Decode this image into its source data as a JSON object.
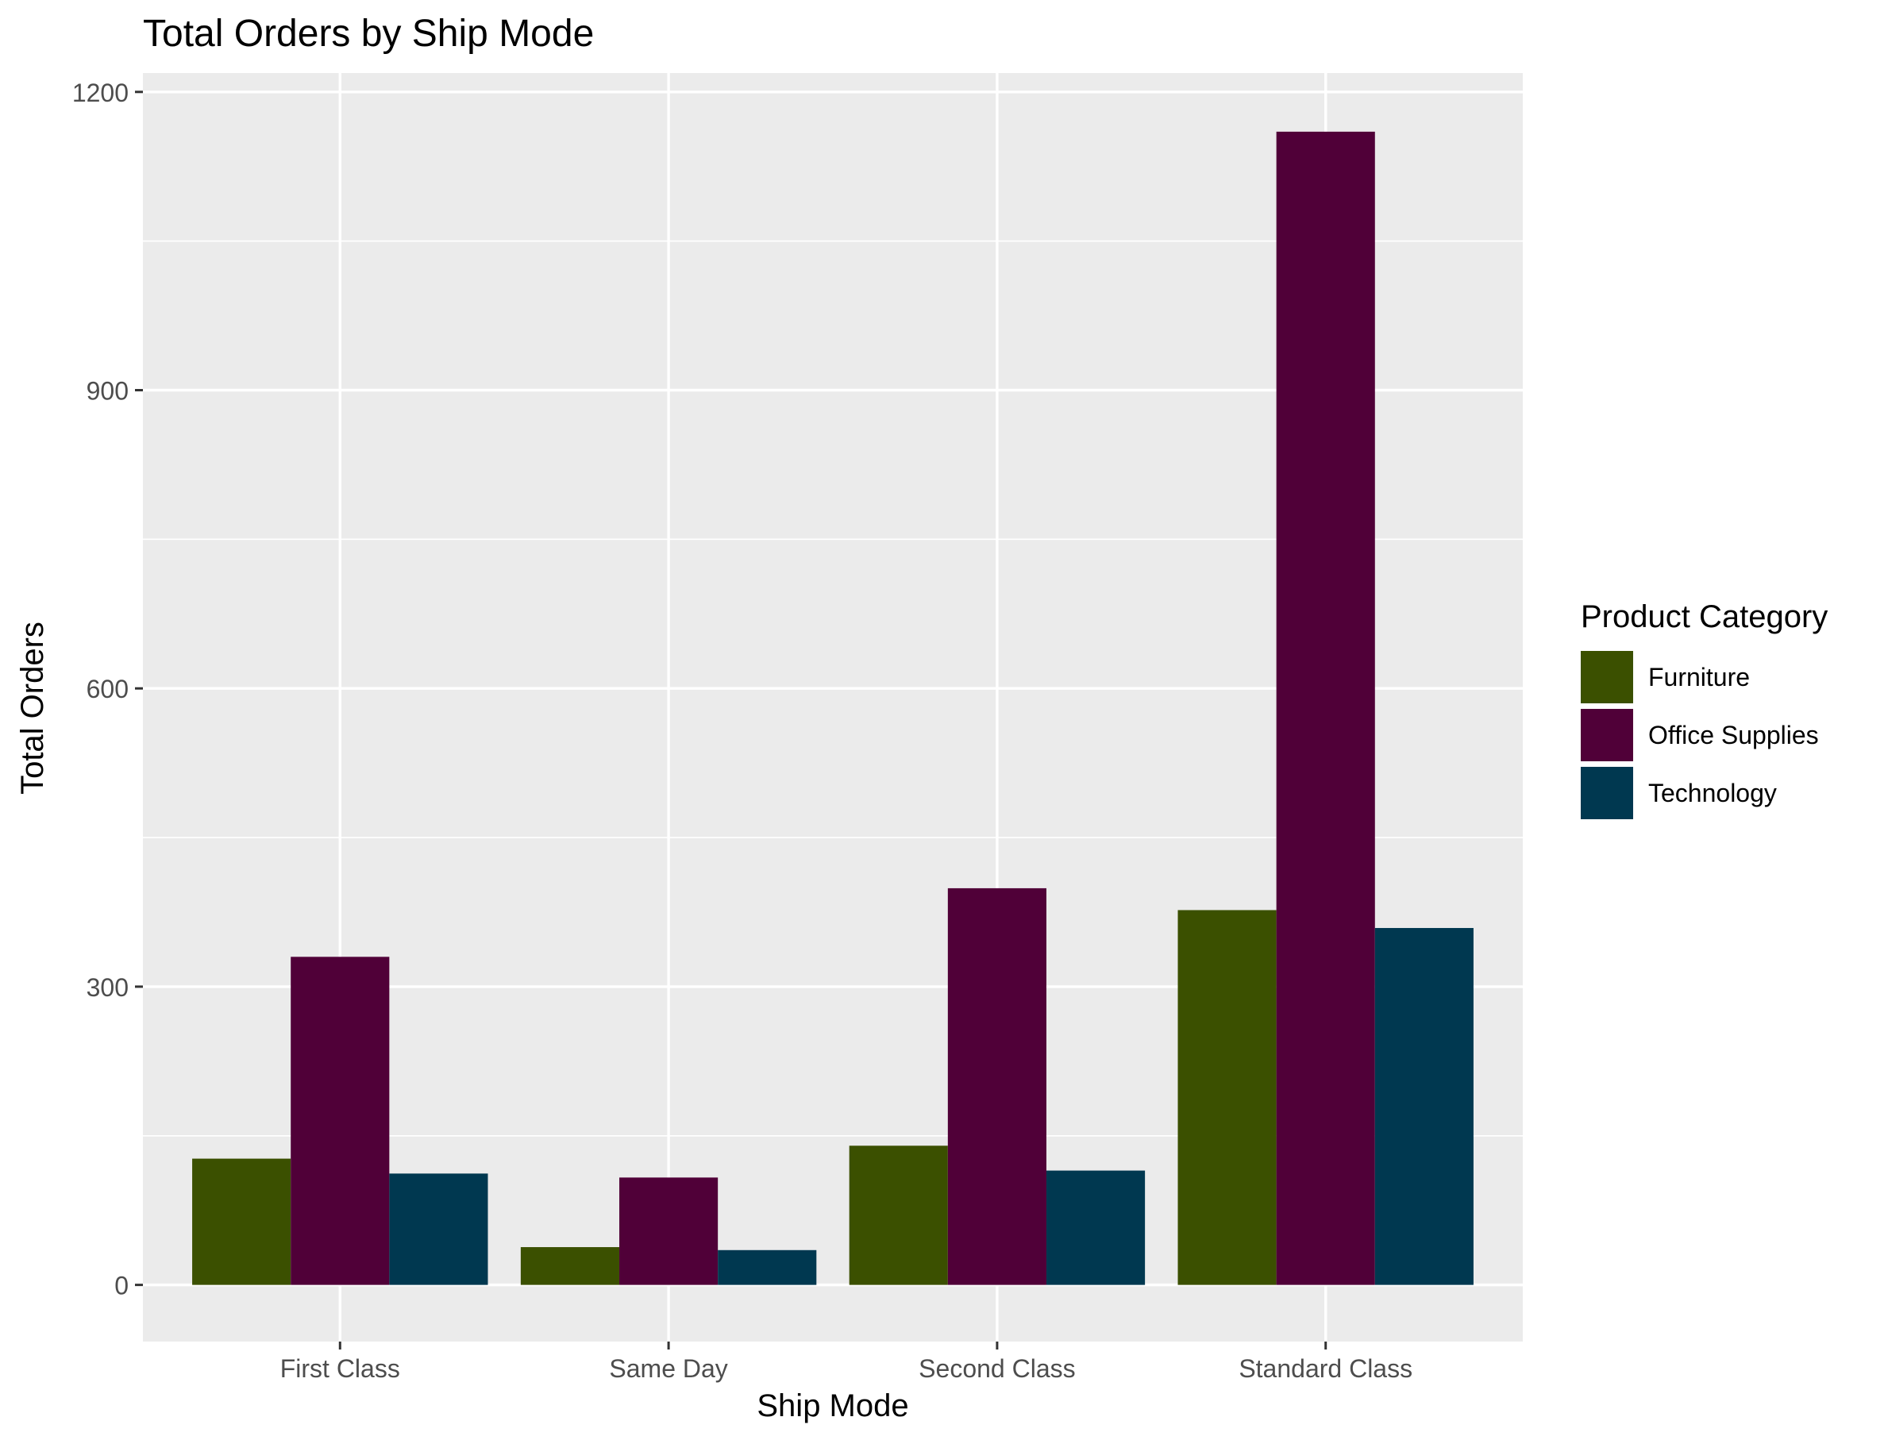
{
  "chart_data": {
    "type": "bar",
    "title": "Total Orders by Ship Mode",
    "xlabel": "Ship Mode",
    "ylabel": "Total Orders",
    "categories": [
      "First Class",
      "Same Day",
      "Second Class",
      "Standard Class"
    ],
    "series": [
      {
        "name": "Furniture",
        "color": "#3b5000",
        "values": [
          127,
          38,
          140,
          377
        ]
      },
      {
        "name": "Office Supplies",
        "color": "#500038",
        "values": [
          330,
          108,
          399,
          1160
        ]
      },
      {
        "name": "Technology",
        "color": "#003850",
        "values": [
          112,
          35,
          115,
          359
        ]
      }
    ],
    "ylim": [
      -57,
      1219
    ],
    "yticks": [
      0,
      300,
      600,
      900,
      1200
    ],
    "ytick_labels": [
      "0",
      "300",
      "600",
      "900",
      "1200"
    ],
    "legend": {
      "title": "Product Category",
      "position": "right"
    },
    "grid": true,
    "panel_background": "#ebebeb",
    "grid_color": "#ffffff"
  }
}
